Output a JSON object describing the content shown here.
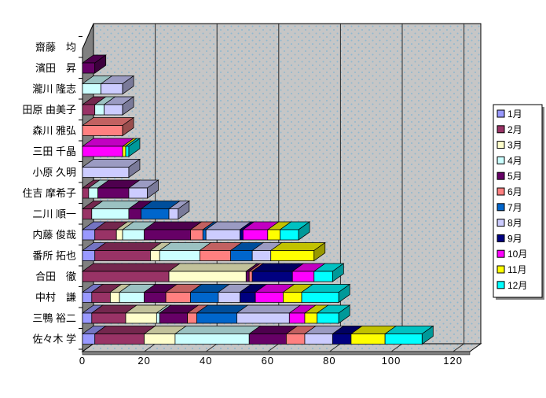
{
  "chart_data": {
    "type": "bar",
    "subtype": "horizontal-stacked-3d",
    "title": "",
    "xlabel": "",
    "ylabel": "",
    "xlim": [
      0,
      120
    ],
    "xticks": [
      "0",
      "20",
      "40",
      "60",
      "80",
      "100",
      "120"
    ],
    "grid": true,
    "legend_position": "right",
    "categories": [
      "齋藤　均",
      "濱田　昇",
      "瀧川 隆志",
      "田原 由美子",
      "森川 雅弘",
      "三田 千晶",
      "小原 久明",
      "住吉 摩希子",
      "二川 順一",
      "内藤 俊哉",
      "番所 拓也",
      "合田　徹",
      "中村　謙",
      "三鴨 裕二",
      "佐々木 学"
    ],
    "series": [
      {
        "name": "1月",
        "color": "#9999FF",
        "values": [
          0,
          0,
          0,
          0,
          0,
          0,
          0,
          0,
          0,
          4,
          4,
          0,
          3,
          3,
          4
        ]
      },
      {
        "name": "2月",
        "color": "#993366",
        "values": [
          0,
          0,
          0,
          4,
          0,
          0,
          0,
          2,
          3,
          7,
          18,
          28,
          6,
          11,
          16
        ]
      },
      {
        "name": "3月",
        "color": "#FFFFCC",
        "values": [
          0,
          0,
          0,
          0,
          0,
          0,
          0,
          0,
          0,
          2,
          3,
          25,
          3,
          10,
          10
        ]
      },
      {
        "name": "4月",
        "color": "#CCFFFF",
        "values": [
          0,
          0,
          6,
          3,
          0,
          0,
          0,
          3,
          12,
          7,
          13,
          0,
          8,
          1,
          24
        ]
      },
      {
        "name": "5月",
        "color": "#660066",
        "values": [
          0,
          4,
          0,
          0,
          0,
          0,
          0,
          10,
          4,
          15,
          0,
          1,
          7,
          9,
          12
        ]
      },
      {
        "name": "6月",
        "color": "#FF8080",
        "values": [
          0,
          0,
          0,
          0,
          13,
          0,
          0,
          0,
          0,
          4,
          10,
          1,
          8,
          3,
          6
        ]
      },
      {
        "name": "7月",
        "color": "#0066CC",
        "values": [
          0,
          0,
          0,
          0,
          0,
          0,
          0,
          0,
          9,
          1,
          7,
          0,
          9,
          13,
          0
        ]
      },
      {
        "name": "8月",
        "color": "#CCCCFF",
        "values": [
          0,
          0,
          7,
          6,
          0,
          0,
          15,
          6,
          3,
          11,
          6,
          0,
          7,
          17,
          9
        ]
      },
      {
        "name": "9月",
        "color": "#000080",
        "values": [
          0,
          0,
          0,
          0,
          0,
          0,
          0,
          0,
          0,
          1,
          0,
          13,
          5,
          0,
          6
        ]
      },
      {
        "name": "10月",
        "color": "#FF00FF",
        "values": [
          0,
          0,
          0,
          0,
          0,
          13,
          0,
          0,
          0,
          8,
          0,
          7,
          9,
          5,
          0
        ]
      },
      {
        "name": "11月",
        "color": "#FFFF00",
        "values": [
          0,
          0,
          0,
          0,
          0,
          1,
          0,
          0,
          0,
          4,
          14,
          0,
          6,
          4,
          11
        ]
      },
      {
        "name": "12月",
        "color": "#00FFFF",
        "values": [
          0,
          0,
          0,
          0,
          0,
          1,
          0,
          0,
          0,
          6,
          0,
          6,
          12,
          7,
          12
        ]
      }
    ]
  },
  "style": {
    "background": "#FFFFFF",
    "wall_fill": "#C6C6C6",
    "wall_dot": "#8FB8D0",
    "side_fill": "#808080",
    "line_color": "#000000"
  }
}
